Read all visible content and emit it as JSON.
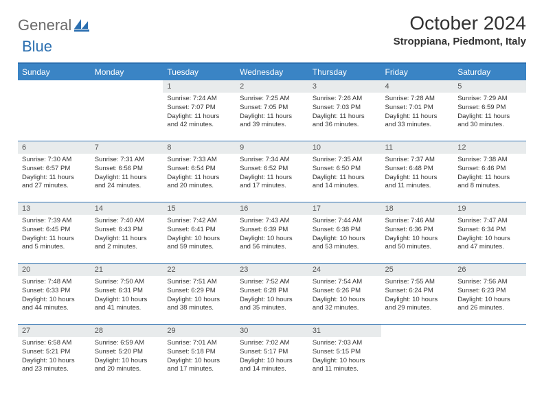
{
  "logo": {
    "text1": "General",
    "text2": "Blue"
  },
  "title": "October 2024",
  "location": "Stroppiana, Piedmont, Italy",
  "colors": {
    "header_bg": "#3a84c5",
    "header_border": "#2b6fb0",
    "daynum_bg": "#e8ebec",
    "text": "#333333",
    "logo_gray": "#6b6b6b",
    "logo_blue": "#2b6fb0"
  },
  "weekdays": [
    "Sunday",
    "Monday",
    "Tuesday",
    "Wednesday",
    "Thursday",
    "Friday",
    "Saturday"
  ],
  "weeks": [
    [
      {
        "blank": true
      },
      {
        "blank": true
      },
      {
        "day": "1",
        "sunrise": "Sunrise: 7:24 AM",
        "sunset": "Sunset: 7:07 PM",
        "daylight": "Daylight: 11 hours and 42 minutes."
      },
      {
        "day": "2",
        "sunrise": "Sunrise: 7:25 AM",
        "sunset": "Sunset: 7:05 PM",
        "daylight": "Daylight: 11 hours and 39 minutes."
      },
      {
        "day": "3",
        "sunrise": "Sunrise: 7:26 AM",
        "sunset": "Sunset: 7:03 PM",
        "daylight": "Daylight: 11 hours and 36 minutes."
      },
      {
        "day": "4",
        "sunrise": "Sunrise: 7:28 AM",
        "sunset": "Sunset: 7:01 PM",
        "daylight": "Daylight: 11 hours and 33 minutes."
      },
      {
        "day": "5",
        "sunrise": "Sunrise: 7:29 AM",
        "sunset": "Sunset: 6:59 PM",
        "daylight": "Daylight: 11 hours and 30 minutes."
      }
    ],
    [
      {
        "day": "6",
        "sunrise": "Sunrise: 7:30 AM",
        "sunset": "Sunset: 6:57 PM",
        "daylight": "Daylight: 11 hours and 27 minutes."
      },
      {
        "day": "7",
        "sunrise": "Sunrise: 7:31 AM",
        "sunset": "Sunset: 6:56 PM",
        "daylight": "Daylight: 11 hours and 24 minutes."
      },
      {
        "day": "8",
        "sunrise": "Sunrise: 7:33 AM",
        "sunset": "Sunset: 6:54 PM",
        "daylight": "Daylight: 11 hours and 20 minutes."
      },
      {
        "day": "9",
        "sunrise": "Sunrise: 7:34 AM",
        "sunset": "Sunset: 6:52 PM",
        "daylight": "Daylight: 11 hours and 17 minutes."
      },
      {
        "day": "10",
        "sunrise": "Sunrise: 7:35 AM",
        "sunset": "Sunset: 6:50 PM",
        "daylight": "Daylight: 11 hours and 14 minutes."
      },
      {
        "day": "11",
        "sunrise": "Sunrise: 7:37 AM",
        "sunset": "Sunset: 6:48 PM",
        "daylight": "Daylight: 11 hours and 11 minutes."
      },
      {
        "day": "12",
        "sunrise": "Sunrise: 7:38 AM",
        "sunset": "Sunset: 6:46 PM",
        "daylight": "Daylight: 11 hours and 8 minutes."
      }
    ],
    [
      {
        "day": "13",
        "sunrise": "Sunrise: 7:39 AM",
        "sunset": "Sunset: 6:45 PM",
        "daylight": "Daylight: 11 hours and 5 minutes."
      },
      {
        "day": "14",
        "sunrise": "Sunrise: 7:40 AM",
        "sunset": "Sunset: 6:43 PM",
        "daylight": "Daylight: 11 hours and 2 minutes."
      },
      {
        "day": "15",
        "sunrise": "Sunrise: 7:42 AM",
        "sunset": "Sunset: 6:41 PM",
        "daylight": "Daylight: 10 hours and 59 minutes."
      },
      {
        "day": "16",
        "sunrise": "Sunrise: 7:43 AM",
        "sunset": "Sunset: 6:39 PM",
        "daylight": "Daylight: 10 hours and 56 minutes."
      },
      {
        "day": "17",
        "sunrise": "Sunrise: 7:44 AM",
        "sunset": "Sunset: 6:38 PM",
        "daylight": "Daylight: 10 hours and 53 minutes."
      },
      {
        "day": "18",
        "sunrise": "Sunrise: 7:46 AM",
        "sunset": "Sunset: 6:36 PM",
        "daylight": "Daylight: 10 hours and 50 minutes."
      },
      {
        "day": "19",
        "sunrise": "Sunrise: 7:47 AM",
        "sunset": "Sunset: 6:34 PM",
        "daylight": "Daylight: 10 hours and 47 minutes."
      }
    ],
    [
      {
        "day": "20",
        "sunrise": "Sunrise: 7:48 AM",
        "sunset": "Sunset: 6:33 PM",
        "daylight": "Daylight: 10 hours and 44 minutes."
      },
      {
        "day": "21",
        "sunrise": "Sunrise: 7:50 AM",
        "sunset": "Sunset: 6:31 PM",
        "daylight": "Daylight: 10 hours and 41 minutes."
      },
      {
        "day": "22",
        "sunrise": "Sunrise: 7:51 AM",
        "sunset": "Sunset: 6:29 PM",
        "daylight": "Daylight: 10 hours and 38 minutes."
      },
      {
        "day": "23",
        "sunrise": "Sunrise: 7:52 AM",
        "sunset": "Sunset: 6:28 PM",
        "daylight": "Daylight: 10 hours and 35 minutes."
      },
      {
        "day": "24",
        "sunrise": "Sunrise: 7:54 AM",
        "sunset": "Sunset: 6:26 PM",
        "daylight": "Daylight: 10 hours and 32 minutes."
      },
      {
        "day": "25",
        "sunrise": "Sunrise: 7:55 AM",
        "sunset": "Sunset: 6:24 PM",
        "daylight": "Daylight: 10 hours and 29 minutes."
      },
      {
        "day": "26",
        "sunrise": "Sunrise: 7:56 AM",
        "sunset": "Sunset: 6:23 PM",
        "daylight": "Daylight: 10 hours and 26 minutes."
      }
    ],
    [
      {
        "day": "27",
        "sunrise": "Sunrise: 6:58 AM",
        "sunset": "Sunset: 5:21 PM",
        "daylight": "Daylight: 10 hours and 23 minutes."
      },
      {
        "day": "28",
        "sunrise": "Sunrise: 6:59 AM",
        "sunset": "Sunset: 5:20 PM",
        "daylight": "Daylight: 10 hours and 20 minutes."
      },
      {
        "day": "29",
        "sunrise": "Sunrise: 7:01 AM",
        "sunset": "Sunset: 5:18 PM",
        "daylight": "Daylight: 10 hours and 17 minutes."
      },
      {
        "day": "30",
        "sunrise": "Sunrise: 7:02 AM",
        "sunset": "Sunset: 5:17 PM",
        "daylight": "Daylight: 10 hours and 14 minutes."
      },
      {
        "day": "31",
        "sunrise": "Sunrise: 7:03 AM",
        "sunset": "Sunset: 5:15 PM",
        "daylight": "Daylight: 10 hours and 11 minutes."
      },
      {
        "blank": true
      },
      {
        "blank": true
      }
    ]
  ]
}
